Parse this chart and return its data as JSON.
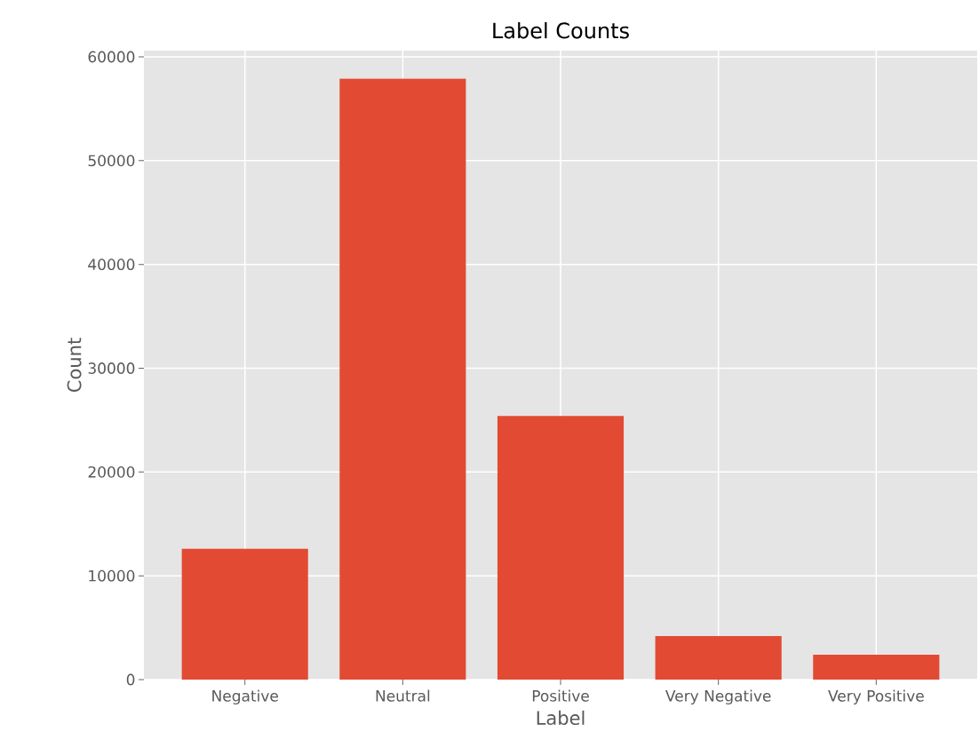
{
  "chart_data": {
    "type": "bar",
    "title": "Label Counts",
    "xlabel": "Label",
    "ylabel": "Count",
    "categories": [
      "Negative",
      "Neutral",
      "Positive",
      "Very Negative",
      "Very Positive"
    ],
    "values": [
      12600,
      57900,
      25400,
      4200,
      2400
    ],
    "color": "#e24a33",
    "ylim": [
      0,
      60600
    ],
    "yticks": [
      0,
      10000,
      20000,
      30000,
      40000,
      50000,
      60000
    ],
    "grid": true
  }
}
